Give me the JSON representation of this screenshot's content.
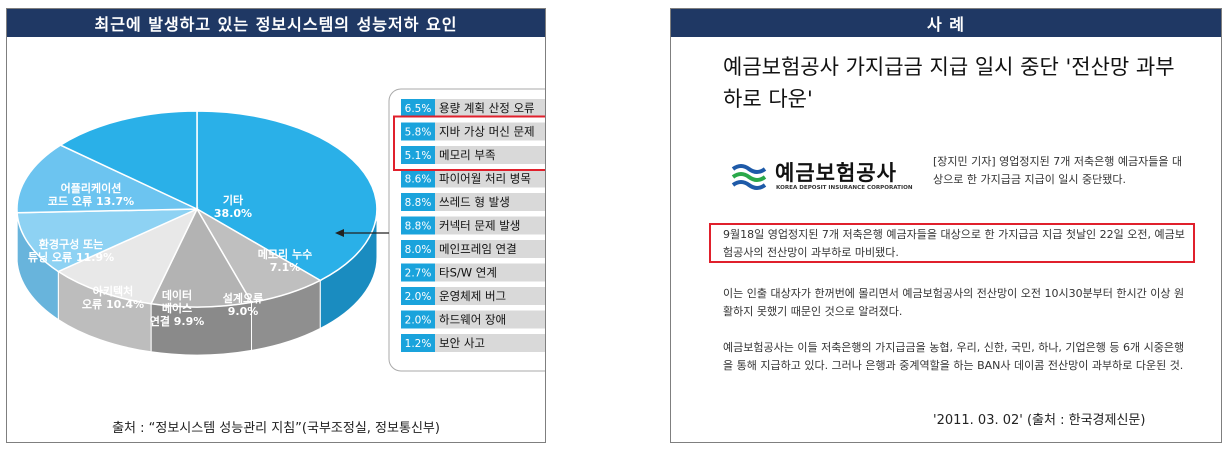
{
  "left": {
    "title": "최근에 발생하고 있는 정보시스템의 성능저하 요인",
    "source": "출처 : “정보시스템 성능관리 지침”(국부조정실, 정보통신부)"
  },
  "right": {
    "title": "사 례",
    "headline": "예금보험공사 가지급금 지급 일시 중단 '전산망 과부하로 다운'",
    "logo_name": "예금보험공사",
    "logo_sub": "KOREA DEPOSIT INSURANCE CORPORATION",
    "lead": "[장지민 기자] 영업정지된 7개 저축은행 예금자들을 대상으로 한 가지급금 지급이 일시 중단됐다.",
    "highlight": "9월18일 영업정지된 7개 저축은행 예금자들을 대상으로 한 가지급금 지급 첫날인 22일 오전, 예금보험공사의 전산망이 과부하로 마비됐다.",
    "para2": "이는 인출 대상자가 한꺼번에 몰리면서 예금보험공사의 전산망이 오전 10시30분부터 한시간 이상 원활하지 못했기 때문인 것으로 알려졌다.",
    "para3": "예금보험공사는 이들 저축은행의 가지급금을 농협, 우리, 신한, 국민, 하나, 기업은행 등 6개 시중은행을 통해 지급하고 있다. 그러나 은행과 중계역할을 하는 BAN사 데이콤 전산망이 과부하로 다운된 것.",
    "date": "'2011. 03. 02' (출처 : 한국경제신문)"
  },
  "colors": {
    "header_bg": "#1f3864",
    "highlight_border": "#e0202c",
    "pct_bg": "#1aa3dc",
    "item_bg": "#d9d9d9"
  },
  "chart_data": {
    "type": "pie",
    "title": "최근에 발생하고 있는 정보시스템의 성능저하 요인",
    "slices": [
      {
        "label": "기타",
        "value": 38.0,
        "display": "기타|38.0%"
      },
      {
        "label": "메모리 누수",
        "value": 7.1,
        "display": "메모리 누수|7.1%"
      },
      {
        "label": "설계오류",
        "value": 9.0,
        "display": "설계오류|9.0%"
      },
      {
        "label": "데이터베이스 연결",
        "value": 9.9,
        "display": "데이터|베이스|연결 9.9%"
      },
      {
        "label": "아키텍처 오류",
        "value": 10.4,
        "display": "아키텍처|오류 10.4%"
      },
      {
        "label": "환경구성 또는 튜닝 오류",
        "value": 11.9,
        "display": "환경구성 또는|튜닝 오류 11.9%"
      },
      {
        "label": "어플리케이션 코드 오류",
        "value": 13.7,
        "display": "어플리케이션|코드 오류 13.7%"
      }
    ],
    "other_breakdown": [
      {
        "pct": "6.5%",
        "label": "용량 계획 산정 오류",
        "highlighted": false
      },
      {
        "pct": "5.8%",
        "label": "지바 가상 머신 문제",
        "highlighted": true
      },
      {
        "pct": "5.1%",
        "label": "메모리 부족",
        "highlighted": true
      },
      {
        "pct": "8.6%",
        "label": "파이어월 처리 병목",
        "highlighted": false
      },
      {
        "pct": "8.8%",
        "label": "쓰레드 형 발생",
        "highlighted": false
      },
      {
        "pct": "8.8%",
        "label": "커넥터 문제 발생",
        "highlighted": false
      },
      {
        "pct": "8.0%",
        "label": "메인프레임 연결",
        "highlighted": false
      },
      {
        "pct": "2.7%",
        "label": "타S/W 연계",
        "highlighted": false
      },
      {
        "pct": "2.0%",
        "label": "운영체제 버그",
        "highlighted": false
      },
      {
        "pct": "2.0%",
        "label": "하드웨어 장애",
        "highlighted": false
      },
      {
        "pct": "1.2%",
        "label": "보안 사고",
        "highlighted": false
      }
    ]
  }
}
